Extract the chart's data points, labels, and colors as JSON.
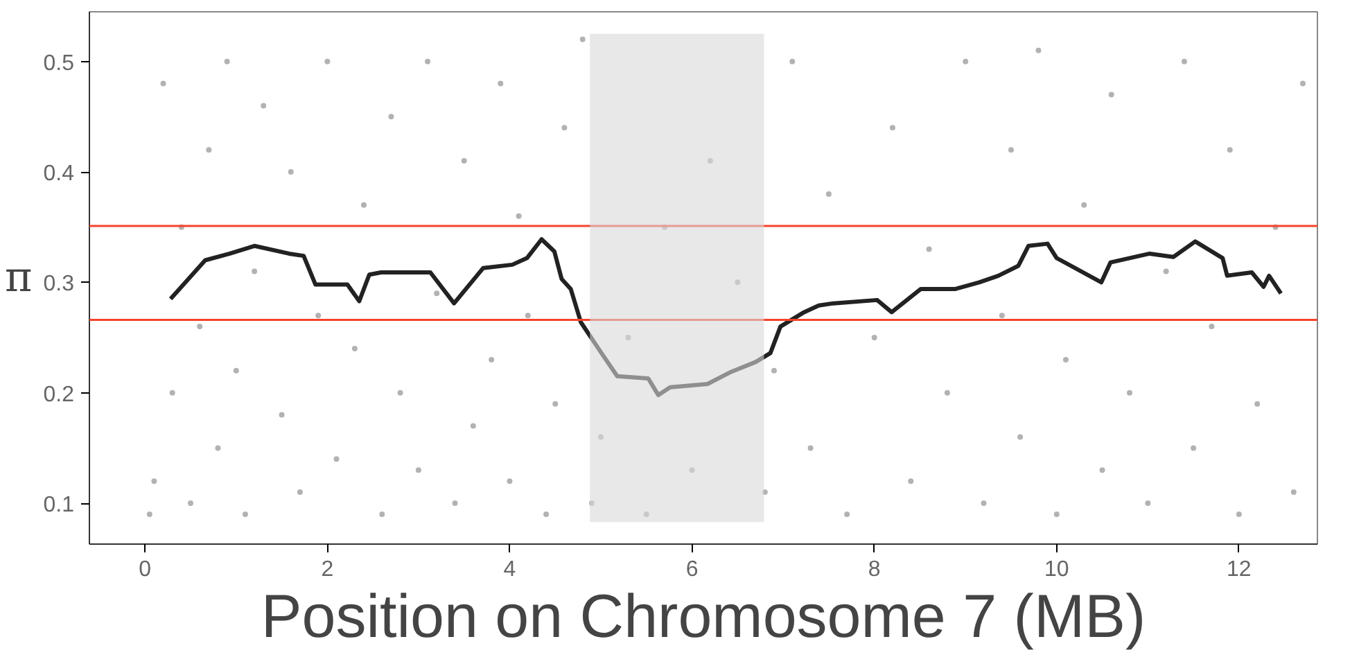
{
  "chart_data": {
    "type": "line",
    "xlabel": "Position on Chromosome 7 (MB)",
    "ylabel": "π",
    "xlim": [
      -0.61,
      12.86
    ],
    "ylim": [
      0.063,
      0.545
    ],
    "xticks": [
      0,
      2,
      4,
      6,
      8,
      10,
      12
    ],
    "yticks": [
      0.1,
      0.2,
      0.3,
      0.4,
      0.5
    ],
    "grid": false,
    "series": [
      {
        "type": "scatter",
        "color": "#000000",
        "marker": "circle",
        "x": [
          0.05,
          0.1,
          0.2,
          0.3,
          0.4,
          0.5,
          0.6,
          0.7,
          0.8,
          0.9,
          1.0,
          1.1,
          1.2,
          1.3,
          1.5,
          1.6,
          1.7,
          1.9,
          2.0,
          2.1,
          2.3,
          2.4,
          2.6,
          2.7,
          2.8,
          3.0,
          3.1,
          3.2,
          3.4,
          3.5,
          3.6,
          3.8,
          3.9,
          4.0,
          4.1,
          4.2,
          4.4,
          4.5,
          4.6,
          4.8,
          4.9,
          5.0,
          5.3,
          5.5,
          5.7,
          6.0,
          6.2,
          6.5,
          6.8,
          6.9,
          7.1,
          7.3,
          7.5,
          7.7,
          8.0,
          8.2,
          8.4,
          8.6,
          8.8,
          9.0,
          9.2,
          9.4,
          9.5,
          9.6,
          9.8,
          10.0,
          10.1,
          10.3,
          10.5,
          10.6,
          10.8,
          11.0,
          11.2,
          11.4,
          11.5,
          11.7,
          11.9,
          12.0,
          12.2,
          12.4,
          12.6,
          12.7
        ],
        "values": [
          0.09,
          0.12,
          0.48,
          0.2,
          0.35,
          0.1,
          0.26,
          0.42,
          0.15,
          0.5,
          0.22,
          0.09,
          0.31,
          0.46,
          0.18,
          0.4,
          0.11,
          0.27,
          0.5,
          0.14,
          0.24,
          0.37,
          0.09,
          0.45,
          0.2,
          0.13,
          0.5,
          0.29,
          0.1,
          0.41,
          0.17,
          0.23,
          0.48,
          0.12,
          0.36,
          0.27,
          0.09,
          0.19,
          0.44,
          0.52,
          0.1,
          0.16,
          0.25,
          0.09,
          0.35,
          0.13,
          0.41,
          0.3,
          0.11,
          0.22,
          0.5,
          0.15,
          0.38,
          0.09,
          0.25,
          0.44,
          0.12,
          0.33,
          0.2,
          0.5,
          0.1,
          0.27,
          0.42,
          0.16,
          0.51,
          0.09,
          0.23,
          0.37,
          0.13,
          0.47,
          0.2,
          0.1,
          0.31,
          0.5,
          0.15,
          0.26,
          0.42,
          0.09,
          0.19,
          0.35,
          0.11,
          0.48
        ]
      },
      {
        "color": "#222222",
        "marker": "none",
        "line_style": "solid",
        "x": [
          0.28,
          0.66,
          0.93,
          1.2,
          1.58,
          1.74,
          1.87,
          2.22,
          2.35,
          2.46,
          2.59,
          2.91,
          3.13,
          3.39,
          3.71,
          4.03,
          4.19,
          4.35,
          4.49,
          4.57,
          4.67,
          4.78,
          4.99,
          5.18,
          5.52,
          5.63,
          5.76,
          6.17,
          6.43,
          6.7,
          6.86,
          6.97,
          7.23,
          7.39,
          7.55,
          8.03,
          8.19,
          8.51,
          8.89,
          9.15,
          9.36,
          9.58,
          9.69,
          9.9,
          10.0,
          10.49,
          10.59,
          11.02,
          11.28,
          11.52,
          11.82,
          11.87,
          12.14,
          12.27,
          12.33,
          12.46
        ],
        "values": [
          0.285,
          0.32,
          0.326,
          0.333,
          0.326,
          0.324,
          0.298,
          0.298,
          0.283,
          0.307,
          0.309,
          0.309,
          0.309,
          0.281,
          0.313,
          0.316,
          0.322,
          0.339,
          0.328,
          0.303,
          0.294,
          0.264,
          0.238,
          0.215,
          0.213,
          0.198,
          0.205,
          0.208,
          0.219,
          0.228,
          0.236,
          0.26,
          0.273,
          0.279,
          0.281,
          0.284,
          0.273,
          0.294,
          0.294,
          0.3,
          0.306,
          0.315,
          0.333,
          0.335,
          0.322,
          0.3,
          0.318,
          0.326,
          0.323,
          0.337,
          0.322,
          0.306,
          0.309,
          0.296,
          0.306,
          0.29
        ]
      }
    ],
    "ref_lines": [
      {
        "axis": "y",
        "value": 0.351,
        "color": "#f5432b",
        "line_style": "solid"
      },
      {
        "axis": "y",
        "value": 0.266,
        "color": "#f5432b",
        "line_style": "solid"
      }
    ],
    "bands": [
      {
        "axis": "x",
        "from": 4.88,
        "to": 6.79,
        "color": "#d9d9d9"
      }
    ]
  }
}
